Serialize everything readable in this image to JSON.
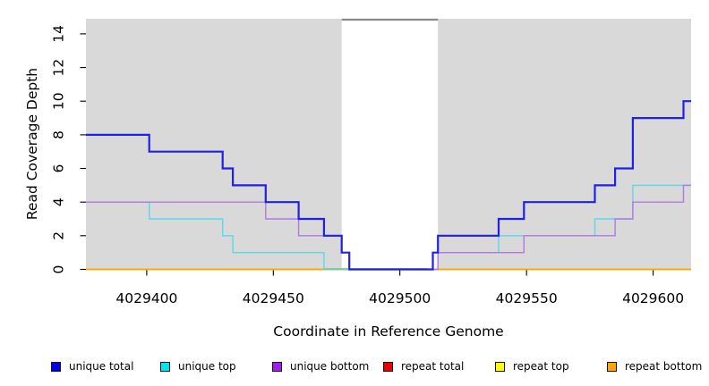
{
  "chart_data": {
    "type": "line",
    "subtype": "step-coverage",
    "title": "",
    "xlabel": "Coordinate in Reference Genome",
    "ylabel": "Read Coverage Depth",
    "xlim": [
      4029376,
      4029615
    ],
    "ylim": [
      0,
      14.9
    ],
    "x_ticks": [
      4029400,
      4029450,
      4029500,
      4029550,
      4029600
    ],
    "y_ticks": [
      0,
      2,
      4,
      6,
      8,
      10,
      12,
      14
    ],
    "grid": false,
    "legend_position": "bottom",
    "page_background": "#ffffff",
    "plot_background": "#d9d9d9",
    "highlight_band": {
      "x_start": 4029477,
      "x_end": 4029515,
      "fill": "#ffffff",
      "top_marker_color": "#8a8a8a",
      "top_marker_y": 14.9
    },
    "baseline_overlap_segment": {
      "x_start": 4029470,
      "x_end": 4029511,
      "y": 0,
      "color": "#7cc87c"
    },
    "series": [
      {
        "name": "unique total",
        "color": "#2020e8",
        "legend_fill": "#0000ee",
        "line_width": 2.2,
        "points": [
          [
            4029376,
            8
          ],
          [
            4029401,
            7
          ],
          [
            4029430,
            6
          ],
          [
            4029434,
            5
          ],
          [
            4029447,
            4
          ],
          [
            4029460,
            3
          ],
          [
            4029470,
            2
          ],
          [
            4029477,
            1
          ],
          [
            4029480,
            0
          ],
          [
            4029513,
            1
          ],
          [
            4029515,
            2
          ],
          [
            4029539,
            3
          ],
          [
            4029549,
            4
          ],
          [
            4029577,
            5
          ],
          [
            4029585,
            6
          ],
          [
            4029592,
            9
          ],
          [
            4029612,
            10
          ]
        ],
        "end_x": 4029615
      },
      {
        "name": "unique top",
        "color": "#5cd8e8",
        "legend_fill": "#00e5ee",
        "line_width": 1.4,
        "points": [
          [
            4029376,
            4
          ],
          [
            4029401,
            3
          ],
          [
            4029430,
            2
          ],
          [
            4029434,
            1
          ],
          [
            4029470,
            0
          ],
          [
            4029513,
            1
          ],
          [
            4029539,
            2
          ],
          [
            4029577,
            3
          ],
          [
            4029592,
            5
          ]
        ],
        "end_x": 4029615
      },
      {
        "name": "unique bottom",
        "color": "#b278e2",
        "legend_fill": "#a020f0",
        "line_width": 1.4,
        "points": [
          [
            4029376,
            4
          ],
          [
            4029447,
            3
          ],
          [
            4029460,
            2
          ],
          [
            4029477,
            1
          ],
          [
            4029480,
            0
          ],
          [
            4029515,
            1
          ],
          [
            4029549,
            2
          ],
          [
            4029585,
            3
          ],
          [
            4029592,
            4
          ],
          [
            4029612,
            5
          ]
        ],
        "end_x": 4029615
      },
      {
        "name": "repeat total",
        "color": "#ee0000",
        "legend_fill": "#ee0000",
        "line_width": 1.2,
        "points": [
          [
            4029376,
            0
          ]
        ],
        "end_x": 4029615
      },
      {
        "name": "repeat top",
        "color": "#ffff00",
        "legend_fill": "#ffff00",
        "line_width": 1.2,
        "points": [
          [
            4029376,
            0
          ]
        ],
        "end_x": 4029615
      },
      {
        "name": "repeat bottom",
        "color": "#ffa500",
        "legend_fill": "#ffa500",
        "line_width": 1.8,
        "points": [
          [
            4029376,
            0
          ]
        ],
        "end_x": 4029615
      }
    ],
    "legend": {
      "items": [
        {
          "label": "unique total",
          "color": "#0000ee"
        },
        {
          "label": "unique top",
          "color": "#00e5ee"
        },
        {
          "label": "unique bottom",
          "color": "#a020f0"
        },
        {
          "label": "repeat total",
          "color": "#ee0000"
        },
        {
          "label": "repeat top",
          "color": "#ffff00"
        },
        {
          "label": "repeat bottom",
          "color": "#ffa500"
        }
      ]
    }
  }
}
